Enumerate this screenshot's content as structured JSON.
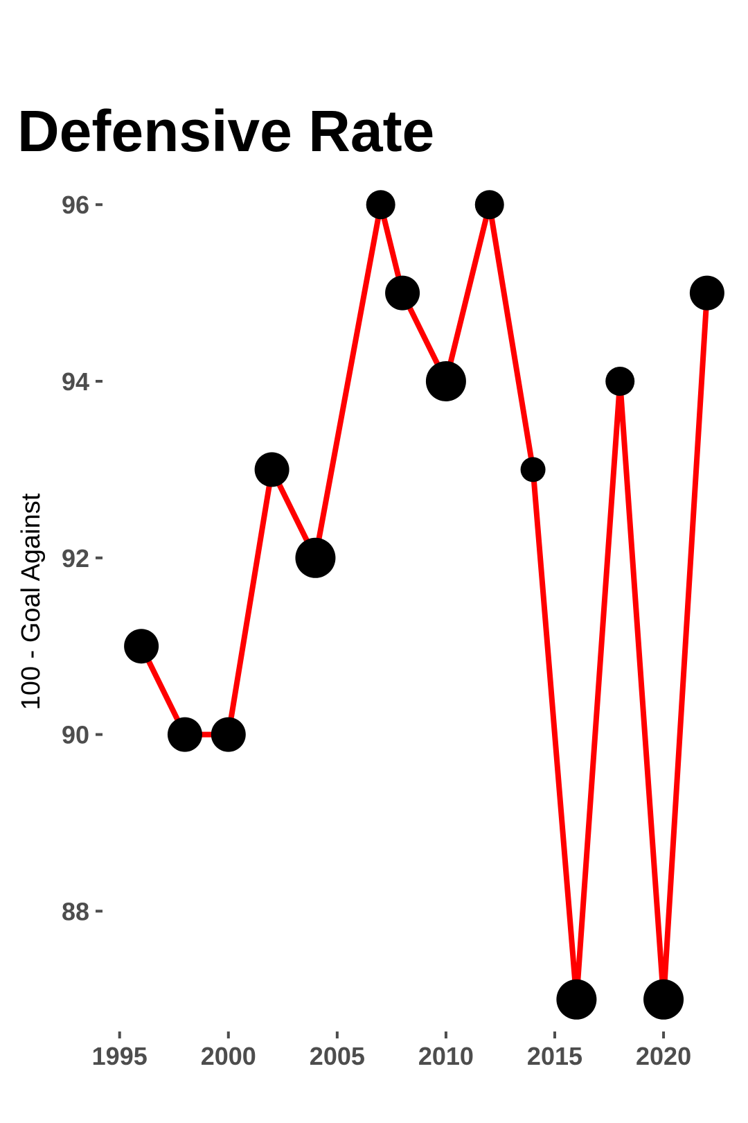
{
  "chart_data": {
    "type": "line",
    "title": "Defensive Rate",
    "xlabel": "",
    "ylabel": "100 - Goal Against",
    "x_ticks": [
      1995,
      2000,
      2005,
      2010,
      2015,
      2020
    ],
    "y_ticks": [
      88,
      90,
      92,
      94,
      96
    ],
    "xlim": [
      1994.5,
      2023.5
    ],
    "ylim": [
      86.7,
      96.3
    ],
    "grid": false,
    "legend": "none",
    "line_color": "#ff0000",
    "point_color": "#000000",
    "tick_label_color": "#4d4d4d",
    "series": [
      {
        "x": [
          1996,
          1998,
          2000,
          2002,
          2004,
          2007,
          2008,
          2010,
          2012,
          2014,
          2016,
          2018,
          2020,
          2022
        ],
        "y": [
          91,
          90,
          90,
          93,
          92,
          96,
          95,
          94,
          96,
          93,
          87,
          94,
          87,
          95
        ],
        "point_size": [
          3,
          3,
          3,
          3,
          4,
          2,
          3,
          4,
          2,
          1,
          4,
          2,
          4,
          3
        ]
      }
    ]
  }
}
